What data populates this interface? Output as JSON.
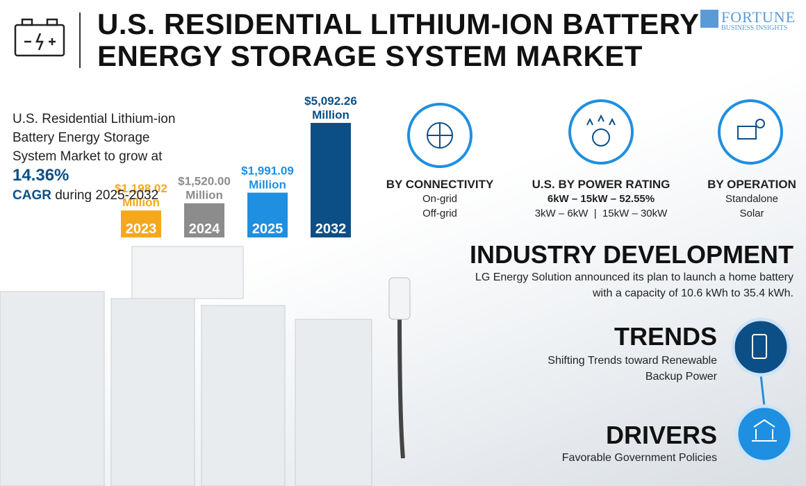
{
  "header": {
    "title_line1": "U.S. RESIDENTIAL LITHIUM-ION BATTERY",
    "title_line2": "ENERGY STORAGE SYSTEM MARKET",
    "logo_name": "FORTUNE",
    "logo_sub": "BUSINESS INSIGHTS"
  },
  "intro": {
    "text": "U.S. Residential Lithium-ion Battery Energy Storage System Market to grow at",
    "cagr_value": "14.36%",
    "cagr_label": "CAGR",
    "period": "during 2025-2032"
  },
  "chart_data": {
    "type": "bar",
    "categories": [
      "2023",
      "2024",
      "2025",
      "2032"
    ],
    "values": [
      1198.02,
      1520.0,
      1991.09,
      5092.26
    ],
    "value_labels": [
      "$1,198.02",
      "$1,520.00",
      "$1,991.09",
      "$5,092.26"
    ],
    "value_unit": "Million",
    "colors": [
      "#f5a81c",
      "#8c8c8c",
      "#1e8fe1",
      "#0c4f87"
    ],
    "label_colors": [
      "#f5a81c",
      "#8c8c8c",
      "#1e8fe1",
      "#0c4f87"
    ]
  },
  "segments": [
    {
      "title": "BY CONNECTIVITY",
      "lines": [
        "On-grid",
        "Off-grid"
      ]
    },
    {
      "title": "U.S. BY POWER RATING",
      "lines": [
        "6kW – 15kW – 52.55%",
        "3kW – 6kW  |  15kW – 30kW"
      ]
    },
    {
      "title": "BY OPERATION",
      "lines": [
        "Standalone",
        "Solar"
      ]
    }
  ],
  "industry_development": {
    "title": "INDUSTRY DEVELOPMENT",
    "text": "LG Energy Solution announced its plan to launch a home battery with a capacity of 10.6 kWh to 35.4 kWh."
  },
  "trends": {
    "title": "TRENDS",
    "text": "Shifting Trends toward Renewable Backup Power"
  },
  "drivers": {
    "title": "DRIVERS",
    "text": "Favorable Government Policies"
  }
}
